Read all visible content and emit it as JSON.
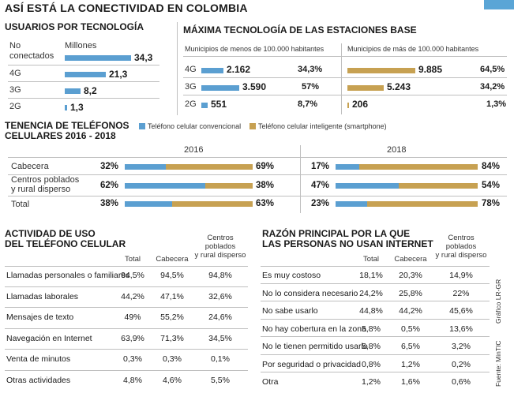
{
  "title": "ASÍ ESTÁ LA CONECTIVIDAD EN COLOMBIA",
  "colors": {
    "blue": "#5b9fd1",
    "gold": "#c7a152"
  },
  "usuarios": {
    "heading": "USUARIOS POR TECNOLOGÍA",
    "unit": "Millones",
    "rows": [
      {
        "label1": "No",
        "label2": "conectados",
        "value": "34,3"
      },
      {
        "label": "4G",
        "value": "21,3"
      },
      {
        "label": "3G",
        "value": "8,2"
      },
      {
        "label": "2G",
        "value": "1,3"
      }
    ]
  },
  "estaciones": {
    "heading": "MÁXIMA TECNOLOGÍA DE LAS ESTACIONES BASE",
    "left_sub": "Municipios de menos de 100.000 habitantes",
    "right_sub": "Municipios de más de 100.000 habitantes",
    "rows": [
      {
        "label": "4G",
        "left_value": "2.162",
        "left_pct": "34,3%",
        "right_value": "9.885",
        "right_pct": "64,5%"
      },
      {
        "label": "3G",
        "left_value": "3.590",
        "left_pct": "57%",
        "right_value": "5.243",
        "right_pct": "34,2%"
      },
      {
        "label": "2G",
        "left_value": "551",
        "left_pct": "8,7%",
        "right_value": "206",
        "right_pct": "1,3%"
      }
    ]
  },
  "tenencia": {
    "heading1": "TENENCIA DE TELÉFONOS",
    "heading2": "CELULARES 2016 - 2018",
    "legend_conv": "Teléfono celular convencional",
    "legend_smart": "Teléfono celular inteligente (smartphone)",
    "year_a": "2016",
    "year_b": "2018",
    "rows": [
      {
        "label1": "Cabecera",
        "label2": "",
        "a_conv": "32%",
        "a_smart": "69%",
        "b_conv": "17%",
        "b_smart": "84%"
      },
      {
        "label1": "Centros poblados",
        "label2": "y rural disperso",
        "a_conv": "62%",
        "a_smart": "38%",
        "b_conv": "47%",
        "b_smart": "54%"
      },
      {
        "label1": "Total",
        "label2": "",
        "a_conv": "38%",
        "a_smart": "63%",
        "b_conv": "23%",
        "b_smart": "78%"
      }
    ]
  },
  "actividad": {
    "heading1": "ACTIVIDAD DE USO",
    "heading2": "DEL TELÉFONO CELULAR",
    "col_total": "Total",
    "col_cabecera": "Cabecera",
    "col_centros1": "Centros",
    "col_centros2": "poblados",
    "col_centros3": "y rural disperso",
    "rows": [
      {
        "label": "Llamadas personales o familiares",
        "total": "94,5%",
        "cabecera": "94,5%",
        "centros": "94,8%"
      },
      {
        "label": "Llamadas laborales",
        "total": "44,2%",
        "cabecera": "47,1%",
        "centros": "32,6%"
      },
      {
        "label": "Mensajes de texto",
        "total": "49%",
        "cabecera": "55,2%",
        "centros": "24,6%"
      },
      {
        "label": "Navegación en Internet",
        "total": "63,9%",
        "cabecera": "71,3%",
        "centros": "34,5%"
      },
      {
        "label": "Venta de minutos",
        "total": "0,3%",
        "cabecera": "0,3%",
        "centros": "0,1%"
      },
      {
        "label": "Otras actividades",
        "total": "4,8%",
        "cabecera": "4,6%",
        "centros": "5,5%"
      }
    ]
  },
  "razon": {
    "heading1": "RAZÓN PRINCIPAL POR LA QUE",
    "heading2": "LAS PERSONAS NO USAN INTERNET",
    "col_total": "Total",
    "col_cabecera": "Cabecera",
    "col_centros1": "Centros",
    "col_centros2": "poblados",
    "col_centros3": "y rural disperso",
    "rows": [
      {
        "label": "Es muy costoso",
        "total": "18,1%",
        "cabecera": "20,3%",
        "centros": "14,9%"
      },
      {
        "label": "No lo considera necesario",
        "total": "24,2%",
        "cabecera": "25,8%",
        "centros": "22%"
      },
      {
        "label": "No sabe usarlo",
        "total": "44,8%",
        "cabecera": "44,2%",
        "centros": "45,6%"
      },
      {
        "label": "No hay cobertura en la zona",
        "total": "5,8%",
        "cabecera": "0,5%",
        "centros": "13,6%"
      },
      {
        "label": "No le tienen permitido usarlo",
        "total": "5,8%",
        "cabecera": "6,5%",
        "centros": "3,2%"
      },
      {
        "label": "Por seguridad o privacidad",
        "total": "0,8%",
        "cabecera": "1,2%",
        "centros": "0,2%"
      },
      {
        "label": "Otra",
        "total": "1,2%",
        "cabecera": "1,6%",
        "centros": "0,6%"
      }
    ]
  },
  "credits": {
    "grafico": "Gráfico LR-GR",
    "fuente": "Fuente: MinTIC"
  },
  "chart_data": [
    {
      "type": "bar",
      "title": "USUARIOS POR TECNOLOGÍA",
      "ylabel": "Millones",
      "categories": [
        "No conectados",
        "4G",
        "3G",
        "2G"
      ],
      "values": [
        34.3,
        21.3,
        8.2,
        1.3
      ]
    },
    {
      "type": "bar",
      "title": "MÁXIMA TECNOLOGÍA DE LAS ESTACIONES BASE",
      "categories": [
        "4G",
        "3G",
        "2G"
      ],
      "series": [
        {
          "name": "Municipios de menos de 100.000 habitantes",
          "values": [
            2162,
            3590,
            551
          ],
          "percent": [
            34.3,
            57,
            8.7
          ]
        },
        {
          "name": "Municipios de más de 100.000 habitantes",
          "values": [
            9885,
            5243,
            206
          ],
          "percent": [
            64.5,
            34.2,
            1.3
          ]
        }
      ]
    },
    {
      "type": "bar",
      "title": "TENENCIA DE TELÉFONOS CELULARES 2016 - 2018",
      "categories": [
        "Cabecera",
        "Centros poblados y rural disperso",
        "Total"
      ],
      "series": [
        {
          "name": "Teléfono celular convencional 2016",
          "values": [
            32,
            62,
            38
          ]
        },
        {
          "name": "Teléfono celular inteligente (smartphone) 2016",
          "values": [
            69,
            38,
            63
          ]
        },
        {
          "name": "Teléfono celular convencional 2018",
          "values": [
            17,
            47,
            23
          ]
        },
        {
          "name": "Teléfono celular inteligente (smartphone) 2018",
          "values": [
            84,
            54,
            78
          ]
        }
      ]
    }
  ]
}
